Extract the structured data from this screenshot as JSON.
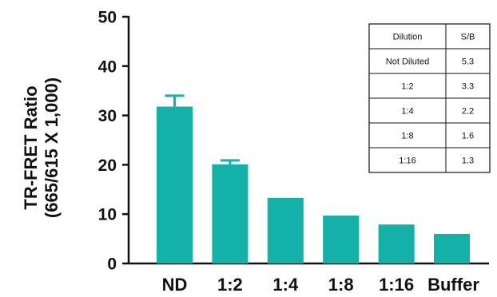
{
  "chart_data": {
    "type": "bar",
    "categories": [
      "ND",
      "1:2",
      "1:4",
      "1:8",
      "1:16",
      "Buffer"
    ],
    "values": [
      31.8,
      20.1,
      13.3,
      9.7,
      7.9,
      6.0
    ],
    "errors": [
      2.2,
      0.8,
      null,
      null,
      null,
      null
    ],
    "ylabel": [
      "TR-FRET Ratio",
      "(665/615 X 1,000)"
    ],
    "ylim": [
      0,
      50
    ],
    "yticks": [
      0,
      10,
      20,
      30,
      40,
      50
    ],
    "grid": false,
    "bar_color": "#14b1a8",
    "table": {
      "headers": [
        "Dilution",
        "S/B"
      ],
      "rows": [
        [
          "Not Diluted",
          "5.3"
        ],
        [
          "1:2",
          "3.3"
        ],
        [
          "1:4",
          "2.2"
        ],
        [
          "1:8",
          "1.6"
        ],
        [
          "1:16",
          "1.3"
        ]
      ]
    }
  }
}
